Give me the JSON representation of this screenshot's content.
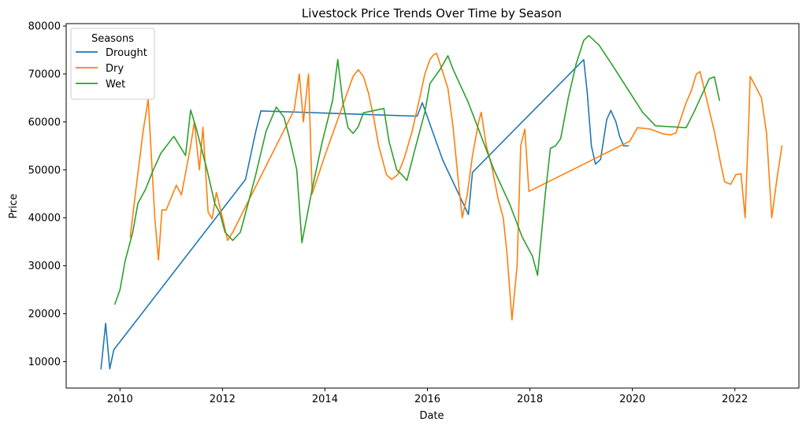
{
  "chart_data": {
    "type": "line",
    "title": "Livestock Price Trends Over Time by Season",
    "xlabel": "Date",
    "ylabel": "Price",
    "xlim": [
      2008.95,
      2023.25
    ],
    "ylim": [
      4500,
      80500
    ],
    "x_ticks": [
      "2010",
      "2012",
      "2014",
      "2016",
      "2018",
      "2020",
      "2022"
    ],
    "y_ticks": [
      "10000",
      "20000",
      "30000",
      "40000",
      "50000",
      "60000",
      "70000",
      "80000"
    ],
    "grid": false,
    "legend": {
      "title": "Seasons",
      "placement": "top-left"
    },
    "series": [
      {
        "name": "Drought",
        "color": "#1f77b4",
        "points": [
          [
            2009.63,
            8500
          ],
          [
            2009.72,
            18000
          ],
          [
            2009.8,
            8500
          ],
          [
            2009.88,
            12500
          ],
          [
            2012.45,
            48000
          ],
          [
            2012.55,
            53000
          ],
          [
            2012.65,
            58000
          ],
          [
            2012.75,
            62300
          ],
          [
            2015.8,
            61200
          ],
          [
            2015.9,
            64000
          ],
          [
            2016.3,
            52000
          ],
          [
            2016.8,
            40700
          ],
          [
            2016.88,
            49500
          ],
          [
            2019.05,
            73000
          ],
          [
            2019.12,
            66000
          ],
          [
            2019.2,
            55000
          ],
          [
            2019.28,
            51200
          ],
          [
            2019.38,
            52200
          ],
          [
            2019.5,
            60500
          ],
          [
            2019.58,
            62400
          ],
          [
            2019.68,
            60000
          ],
          [
            2019.75,
            57000
          ],
          [
            2019.83,
            55000
          ],
          [
            2019.92,
            55000
          ]
        ]
      },
      {
        "name": "Dry",
        "color": "#ff7f0e",
        "points": [
          [
            2010.2,
            36000
          ],
          [
            2010.3,
            45000
          ],
          [
            2010.45,
            58000
          ],
          [
            2010.55,
            64700
          ],
          [
            2010.68,
            40000
          ],
          [
            2010.75,
            31200
          ],
          [
            2010.82,
            41700
          ],
          [
            2010.9,
            41600
          ],
          [
            2011.1,
            46800
          ],
          [
            2011.2,
            44800
          ],
          [
            2011.38,
            55000
          ],
          [
            2011.45,
            60000
          ],
          [
            2011.55,
            50000
          ],
          [
            2011.62,
            58900
          ],
          [
            2011.72,
            41200
          ],
          [
            2011.8,
            39800
          ],
          [
            2011.88,
            45300
          ],
          [
            2012.0,
            40000
          ],
          [
            2012.1,
            35300
          ],
          [
            2012.2,
            37000
          ],
          [
            2013.4,
            62500
          ],
          [
            2013.5,
            70000
          ],
          [
            2013.58,
            60000
          ],
          [
            2013.68,
            70000
          ],
          [
            2013.75,
            45000
          ],
          [
            2014.0,
            53000
          ],
          [
            2014.2,
            59000
          ],
          [
            2014.4,
            65000
          ],
          [
            2014.55,
            69500
          ],
          [
            2014.65,
            70900
          ],
          [
            2014.75,
            69500
          ],
          [
            2014.85,
            66000
          ],
          [
            2014.95,
            61000
          ],
          [
            2015.05,
            55000
          ],
          [
            2015.2,
            49000
          ],
          [
            2015.3,
            48000
          ],
          [
            2015.42,
            49000
          ],
          [
            2015.55,
            52500
          ],
          [
            2015.7,
            58000
          ],
          [
            2015.85,
            65000
          ],
          [
            2015.95,
            70000
          ],
          [
            2016.05,
            73000
          ],
          [
            2016.12,
            74000
          ],
          [
            2016.18,
            74300
          ],
          [
            2016.28,
            71000
          ],
          [
            2016.4,
            67000
          ],
          [
            2016.5,
            59000
          ],
          [
            2016.6,
            48000
          ],
          [
            2016.68,
            40000
          ],
          [
            2016.78,
            45000
          ],
          [
            2016.88,
            53000
          ],
          [
            2017.0,
            60000
          ],
          [
            2017.05,
            62000
          ],
          [
            2017.15,
            55000
          ],
          [
            2017.25,
            51000
          ],
          [
            2017.38,
            44000
          ],
          [
            2017.48,
            40000
          ],
          [
            2017.55,
            33000
          ],
          [
            2017.65,
            18700
          ],
          [
            2017.75,
            30000
          ],
          [
            2017.82,
            55000
          ],
          [
            2017.9,
            58500
          ],
          [
            2017.98,
            45500
          ],
          [
            2019.95,
            56000
          ],
          [
            2020.1,
            58800
          ],
          [
            2020.35,
            58500
          ],
          [
            2020.6,
            57500
          ],
          [
            2020.75,
            57300
          ],
          [
            2020.85,
            57700
          ],
          [
            2021.05,
            64000
          ],
          [
            2021.15,
            66500
          ],
          [
            2021.25,
            70000
          ],
          [
            2021.32,
            70500
          ],
          [
            2021.42,
            66000
          ],
          [
            2021.6,
            58000
          ],
          [
            2021.72,
            51500
          ],
          [
            2021.8,
            47500
          ],
          [
            2021.92,
            47000
          ],
          [
            2022.02,
            49000
          ],
          [
            2022.12,
            49200
          ],
          [
            2022.2,
            40000
          ],
          [
            2022.27,
            60000
          ],
          [
            2022.3,
            69500
          ],
          [
            2022.4,
            67500
          ],
          [
            2022.52,
            65000
          ],
          [
            2022.62,
            57500
          ],
          [
            2022.72,
            40000
          ],
          [
            2022.82,
            48000
          ],
          [
            2022.92,
            55000
          ]
        ]
      },
      {
        "name": "Wet",
        "color": "#2ca02c",
        "points": [
          [
            2009.9,
            22000
          ],
          [
            2010.0,
            25000
          ],
          [
            2010.1,
            31000
          ],
          [
            2010.25,
            37000
          ],
          [
            2010.35,
            43000
          ],
          [
            2010.5,
            46000
          ],
          [
            2010.65,
            50000
          ],
          [
            2010.8,
            53500
          ],
          [
            2011.05,
            57000
          ],
          [
            2011.28,
            53000
          ],
          [
            2011.38,
            62500
          ],
          [
            2011.48,
            59000
          ],
          [
            2011.7,
            50000
          ],
          [
            2011.85,
            43000
          ],
          [
            2011.95,
            41000
          ],
          [
            2012.05,
            37000
          ],
          [
            2012.2,
            35300
          ],
          [
            2012.35,
            37000
          ],
          [
            2012.5,
            43000
          ],
          [
            2012.65,
            49000
          ],
          [
            2012.85,
            58000
          ],
          [
            2013.05,
            63100
          ],
          [
            2013.2,
            61000
          ],
          [
            2013.3,
            57000
          ],
          [
            2013.45,
            50000
          ],
          [
            2013.55,
            34800
          ],
          [
            2013.75,
            46000
          ],
          [
            2013.95,
            56000
          ],
          [
            2014.15,
            64500
          ],
          [
            2014.25,
            73000
          ],
          [
            2014.35,
            64000
          ],
          [
            2014.45,
            58800
          ],
          [
            2014.55,
            57600
          ],
          [
            2014.65,
            59000
          ],
          [
            2014.75,
            61900
          ],
          [
            2015.15,
            62800
          ],
          [
            2015.25,
            56000
          ],
          [
            2015.4,
            50000
          ],
          [
            2015.5,
            49000
          ],
          [
            2015.6,
            47800
          ],
          [
            2015.75,
            54000
          ],
          [
            2015.95,
            62000
          ],
          [
            2016.05,
            68000
          ],
          [
            2016.25,
            71000
          ],
          [
            2016.4,
            73800
          ],
          [
            2016.5,
            71000
          ],
          [
            2016.8,
            64000
          ],
          [
            2017.05,
            57000
          ],
          [
            2017.3,
            50000
          ],
          [
            2017.6,
            43000
          ],
          [
            2017.85,
            36000
          ],
          [
            2018.05,
            32000
          ],
          [
            2018.15,
            28000
          ],
          [
            2018.3,
            45000
          ],
          [
            2018.4,
            54500
          ],
          [
            2018.5,
            55000
          ],
          [
            2018.6,
            56500
          ],
          [
            2018.75,
            65000
          ],
          [
            2018.9,
            72000
          ],
          [
            2019.05,
            77000
          ],
          [
            2019.15,
            78000
          ],
          [
            2019.35,
            76000
          ],
          [
            2019.6,
            72000
          ],
          [
            2019.9,
            67000
          ],
          [
            2020.2,
            62000
          ],
          [
            2020.45,
            59200
          ],
          [
            2020.75,
            59000
          ],
          [
            2021.05,
            58800
          ],
          [
            2021.2,
            62000
          ],
          [
            2021.5,
            69000
          ],
          [
            2021.6,
            69400
          ],
          [
            2021.7,
            64500
          ]
        ]
      }
    ]
  }
}
